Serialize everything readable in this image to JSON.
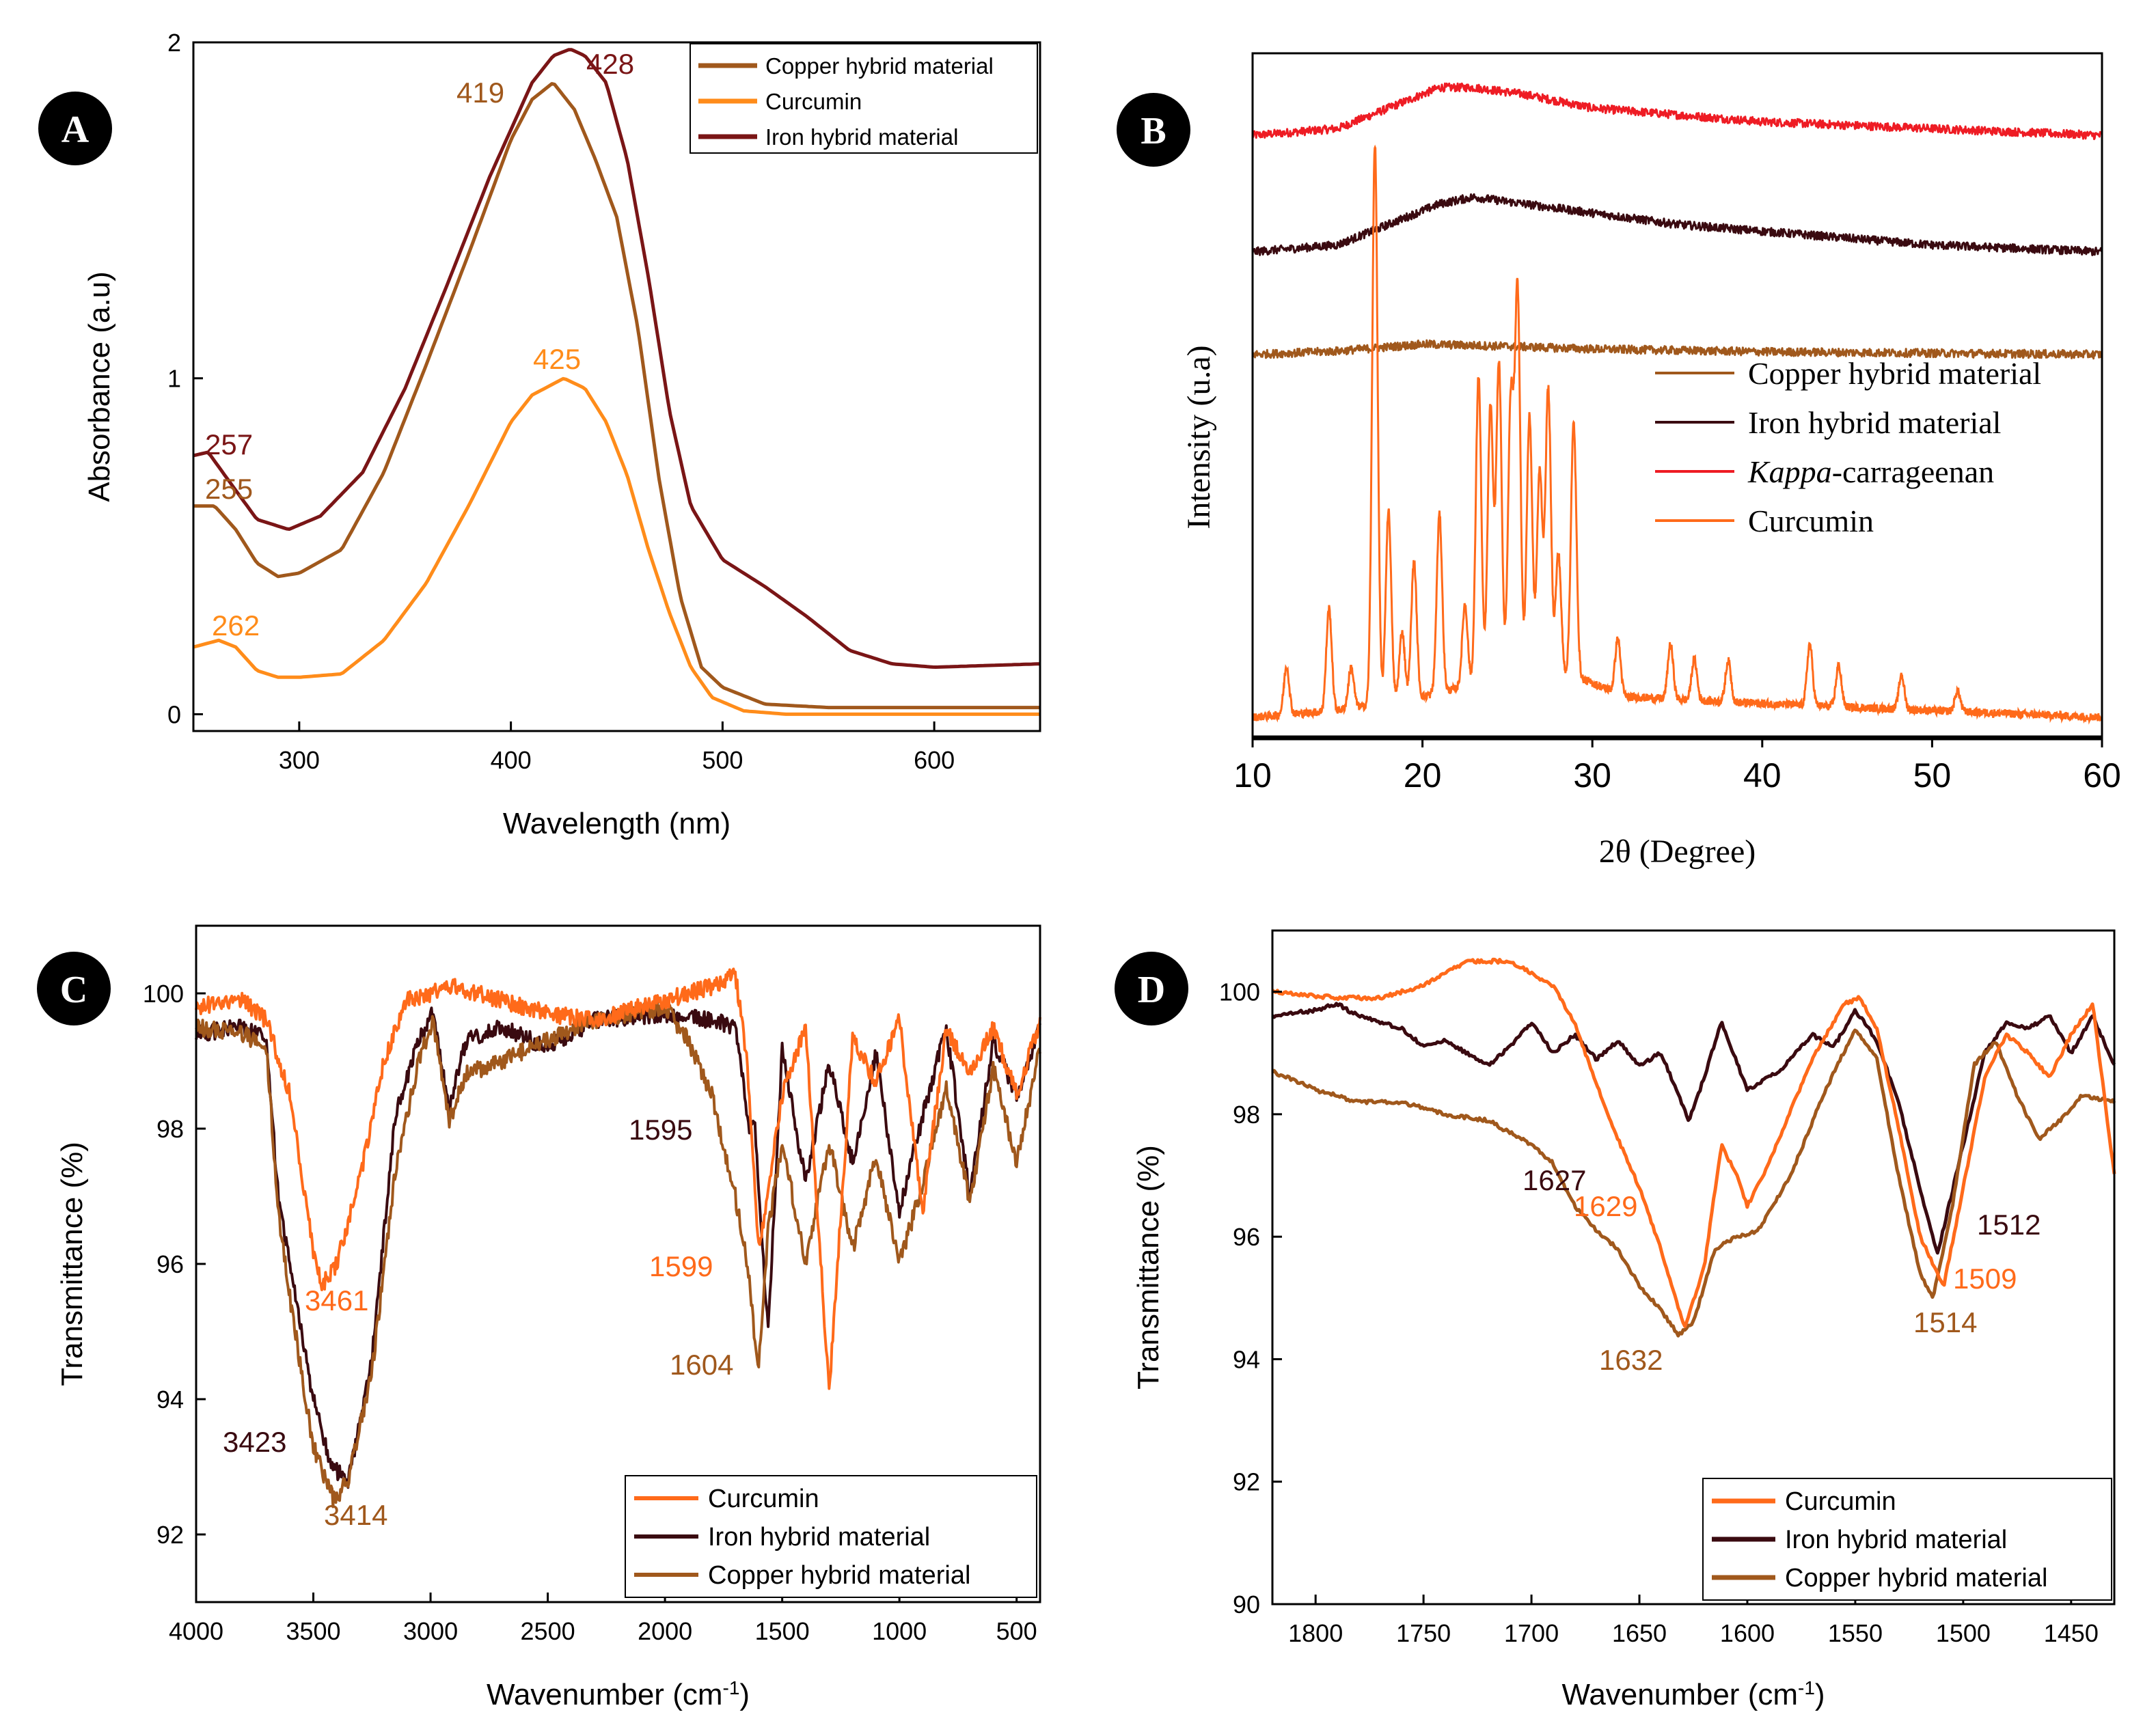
{
  "chart_data": [
    {
      "panel": "A",
      "type": "line",
      "xlabel": "Wavelength (nm)",
      "ylabel": "Absorbance (a.u)",
      "xlim": [
        250,
        650
      ],
      "ylim": [
        -0.05,
        2.0
      ],
      "xticks": [
        "300",
        "400",
        "500",
        "600"
      ],
      "yticks": [
        "0",
        "1",
        "2"
      ],
      "legend": [
        "Copper hybrid material",
        "Curcumin",
        "Iron hybrid material"
      ],
      "series": [
        {
          "name": "Copper hybrid material",
          "color": "#a0581c",
          "x": [
            250,
            260,
            270,
            280,
            290,
            300,
            320,
            340,
            360,
            380,
            400,
            410,
            420,
            430,
            440,
            450,
            460,
            470,
            480,
            490,
            500,
            520,
            550,
            600,
            650
          ],
          "y": [
            0.62,
            0.62,
            0.55,
            0.45,
            0.41,
            0.42,
            0.49,
            0.72,
            1.04,
            1.37,
            1.71,
            1.83,
            1.88,
            1.8,
            1.65,
            1.48,
            1.15,
            0.7,
            0.35,
            0.14,
            0.08,
            0.03,
            0.02,
            0.02,
            0.02
          ]
        },
        {
          "name": "Curcumin",
          "color": "#ff8c1a",
          "x": [
            250,
            262,
            270,
            280,
            290,
            300,
            320,
            340,
            360,
            380,
            400,
            410,
            425,
            435,
            445,
            455,
            465,
            475,
            485,
            495,
            510,
            530,
            560,
            600,
            650
          ],
          "y": [
            0.2,
            0.22,
            0.2,
            0.13,
            0.11,
            0.11,
            0.12,
            0.22,
            0.39,
            0.62,
            0.87,
            0.95,
            1.0,
            0.97,
            0.87,
            0.71,
            0.49,
            0.3,
            0.14,
            0.05,
            0.01,
            0.0,
            0.0,
            0.0,
            0.0
          ]
        },
        {
          "name": "Iron hybrid material",
          "color": "#7a1516",
          "x": [
            250,
            257,
            265,
            280,
            295,
            310,
            330,
            350,
            370,
            390,
            410,
            420,
            428,
            435,
            445,
            455,
            465,
            475,
            485,
            500,
            520,
            540,
            560,
            580,
            600,
            650
          ],
          "y": [
            0.77,
            0.78,
            0.71,
            0.58,
            0.55,
            0.59,
            0.72,
            0.97,
            1.28,
            1.6,
            1.88,
            1.96,
            1.98,
            1.96,
            1.88,
            1.65,
            1.3,
            0.9,
            0.62,
            0.46,
            0.38,
            0.29,
            0.19,
            0.15,
            0.14,
            0.15
          ]
        }
      ],
      "annotations": [
        {
          "text": "257",
          "color": "#7a1516"
        },
        {
          "text": "255",
          "color": "#a0581c"
        },
        {
          "text": "262",
          "color": "#ff8c1a"
        },
        {
          "text": "419",
          "color": "#a0581c"
        },
        {
          "text": "428",
          "color": "#7a1516"
        },
        {
          "text": "425",
          "color": "#ff8c1a"
        }
      ]
    },
    {
      "panel": "B",
      "type": "line",
      "xlabel": "2θ (Degree)",
      "ylabel": "Intensity (u.a)",
      "xlim": [
        10,
        60
      ],
      "ylim": [
        0,
        1
      ],
      "xticks": [
        "10",
        "20",
        "30",
        "40",
        "50",
        "60"
      ],
      "legend": [
        "Copper hybrid material",
        "Iron hybrid material",
        "Kappa-carrageenan",
        "Curcumin"
      ],
      "series": [
        {
          "name": "Kappa-carrageenan",
          "color": "#ee1c24",
          "offset": 0.88,
          "x": [
            10,
            15,
            18,
            21,
            23,
            26,
            30,
            40,
            50,
            60
          ],
          "y": [
            0,
            0.01,
            0.04,
            0.07,
            0.07,
            0.06,
            0.04,
            0.02,
            0.01,
            0
          ]
        },
        {
          "name": "Iron hybrid material",
          "color": "#3a0a10",
          "offset": 0.71,
          "x": [
            10,
            15,
            18,
            21,
            23,
            26,
            29,
            35,
            40,
            50,
            60
          ],
          "y": [
            0,
            0.01,
            0.04,
            0.07,
            0.08,
            0.07,
            0.06,
            0.04,
            0.03,
            0.01,
            0
          ]
        },
        {
          "name": "Copper hybrid material",
          "color": "#a0581c",
          "offset": 0.56,
          "x": [
            10,
            15,
            20,
            25,
            30,
            40,
            50,
            60
          ],
          "y": [
            0,
            0.005,
            0.015,
            0.012,
            0.008,
            0.004,
            0.002,
            0
          ]
        },
        {
          "name": "Curcumin",
          "color": "#ff6a1a",
          "offset": 0.03,
          "baseline": [
            [
              10,
              0.0
            ],
            [
              15,
              0.01
            ],
            [
              20,
              0.03
            ],
            [
              25,
              0.06
            ],
            [
              29,
              0.06
            ],
            [
              32,
              0.03
            ],
            [
              40,
              0.02
            ],
            [
              50,
              0.01
            ],
            [
              60,
              0.0
            ]
          ],
          "peaks": [
            [
              12.0,
              0.07
            ],
            [
              14.5,
              0.15
            ],
            [
              15.8,
              0.06
            ],
            [
              17.2,
              0.82
            ],
            [
              18.0,
              0.28
            ],
            [
              18.8,
              0.1
            ],
            [
              19.5,
              0.2
            ],
            [
              21.0,
              0.26
            ],
            [
              22.5,
              0.12
            ],
            [
              23.3,
              0.45
            ],
            [
              24.0,
              0.4
            ],
            [
              24.5,
              0.46
            ],
            [
              25.2,
              0.4
            ],
            [
              25.6,
              0.56
            ],
            [
              26.3,
              0.38
            ],
            [
              26.9,
              0.3
            ],
            [
              27.4,
              0.42
            ],
            [
              28.0,
              0.18
            ],
            [
              28.9,
              0.37
            ],
            [
              31.5,
              0.08
            ],
            [
              34.6,
              0.08
            ],
            [
              36.0,
              0.06
            ],
            [
              38.0,
              0.06
            ],
            [
              42.8,
              0.09
            ],
            [
              44.5,
              0.06
            ],
            [
              48.2,
              0.05
            ],
            [
              51.5,
              0.03
            ]
          ]
        }
      ]
    },
    {
      "panel": "C",
      "type": "line",
      "xlabel": "Wavenumber (cm⁻¹)",
      "ylabel": "Transmittance (%)",
      "xlim": [
        4000,
        400
      ],
      "ylim": [
        91.0,
        101.0
      ],
      "xticks": [
        "4000",
        "3500",
        "3000",
        "2500",
        "2000",
        "1500",
        "1000",
        "500"
      ],
      "yticks": [
        "92",
        "94",
        "96",
        "98",
        "100"
      ],
      "legend": [
        "Curcumin",
        "Iron hybrid material",
        "Copper hybrid material"
      ],
      "series": [
        {
          "name": "Curcumin",
          "color": "#ff6a1a",
          "x": [
            4000,
            3800,
            3700,
            3600,
            3500,
            3461,
            3400,
            3300,
            3200,
            3100,
            3000,
            2900,
            2800,
            2500,
            2300,
            2000,
            1800,
            1700,
            1650,
            1600,
            1500,
            1400,
            1300,
            1200,
            1100,
            1000,
            900,
            800,
            700,
            600,
            500,
            400
          ],
          "y": [
            99.8,
            99.9,
            99.6,
            98.5,
            96.2,
            95.7,
            96.0,
            97.3,
            99.0,
            99.9,
            100.0,
            100.1,
            100.0,
            99.7,
            99.6,
            99.9,
            100.1,
            100.3,
            99.0,
            96.2,
            98.5,
            99.5,
            94.1,
            99.3,
            98.7,
            99.6,
            96.8,
            99.5,
            98.8,
            99.5,
            98.5,
            99.6
          ]
        },
        {
          "name": "Iron hybrid material",
          "color": "#3a0a10",
          "x": [
            4000,
            3800,
            3700,
            3650,
            3600,
            3500,
            3423,
            3350,
            3250,
            3150,
            3050,
            2990,
            2920,
            2850,
            2700,
            2500,
            2300,
            2000,
            1800,
            1700,
            1640,
            1620,
            1560,
            1500,
            1400,
            1300,
            1200,
            1100,
            1000,
            900,
            800,
            700,
            600,
            500,
            400
          ],
          "y": [
            99.4,
            99.5,
            99.3,
            97.0,
            96.0,
            94.0,
            93.0,
            92.8,
            94.6,
            98.2,
            99.3,
            99.7,
            98.3,
            99.3,
            99.5,
            99.2,
            99.6,
            99.7,
            99.6,
            99.5,
            98.0,
            98.2,
            95.0,
            99.2,
            97.2,
            99.0,
            97.5,
            99.1,
            96.8,
            98.2,
            99.5,
            97.0,
            99.3,
            98.5,
            99.5
          ]
        },
        {
          "name": "Copper hybrid material",
          "color": "#a0581c",
          "x": [
            4000,
            3800,
            3700,
            3650,
            3600,
            3500,
            3414,
            3350,
            3250,
            3150,
            3050,
            2990,
            2920,
            2850,
            2700,
            2500,
            2300,
            2000,
            1900,
            1800,
            1700,
            1640,
            1604,
            1560,
            1500,
            1400,
            1300,
            1200,
            1100,
            1000,
            900,
            800,
            700,
            600,
            500,
            400
          ],
          "y": [
            99.5,
            99.4,
            99.2,
            96.8,
            95.5,
            93.3,
            92.5,
            92.8,
            94.4,
            97.4,
            99.0,
            99.6,
            98.1,
            98.8,
            99.0,
            99.3,
            99.6,
            99.8,
            99.3,
            98.5,
            97.0,
            95.8,
            94.4,
            96.5,
            97.8,
            96.0,
            97.8,
            96.2,
            97.6,
            96.0,
            97.2,
            98.6,
            96.9,
            98.9,
            97.5,
            99.2
          ]
        }
      ],
      "annotations": [
        {
          "text": "3461",
          "color": "#ff6a1a"
        },
        {
          "text": "3423",
          "color": "#3a0a10"
        },
        {
          "text": "3414",
          "color": "#a0581c"
        },
        {
          "text": "1595",
          "color": "#3a0a10"
        },
        {
          "text": "1599",
          "color": "#ff6a1a"
        },
        {
          "text": "1604",
          "color": "#a0581c"
        }
      ]
    },
    {
      "panel": "D",
      "type": "line",
      "xlabel": "Wavenumber (cm⁻¹)",
      "ylabel": "Transmittance (%)",
      "xlim": [
        1820,
        1430
      ],
      "ylim": [
        90.0,
        101.0
      ],
      "xticks": [
        "1800",
        "1750",
        "1700",
        "1650",
        "1600",
        "1550",
        "1500",
        "1450"
      ],
      "yticks": [
        "90",
        "92",
        "94",
        "96",
        "98",
        "100"
      ],
      "legend": [
        "Curcumin",
        "Iron hybrid material",
        "Copper hybrid material"
      ],
      "series": [
        {
          "name": "Curcumin",
          "color": "#ff6a1a",
          "x": [
            1820,
            1790,
            1770,
            1750,
            1730,
            1710,
            1690,
            1680,
            1670,
            1660,
            1650,
            1640,
            1629,
            1620,
            1612,
            1605,
            1600,
            1590,
            1570,
            1555,
            1548,
            1540,
            1530,
            1520,
            1509,
            1500,
            1490,
            1480,
            1470,
            1460,
            1450,
            1440,
            1430
          ],
          "y": [
            100.0,
            99.9,
            99.9,
            100.1,
            100.5,
            100.5,
            100.1,
            99.5,
            98.5,
            97.6,
            96.8,
            95.8,
            94.5,
            95.5,
            97.5,
            97.0,
            96.5,
            97.2,
            98.9,
            99.8,
            99.9,
            99.4,
            97.8,
            96.0,
            95.2,
            96.8,
            98.6,
            99.3,
            99.0,
            98.6,
            99.3,
            99.8,
            97.0
          ]
        },
        {
          "name": "Iron hybrid material",
          "color": "#3a0a10",
          "x": [
            1820,
            1800,
            1790,
            1780,
            1770,
            1760,
            1750,
            1740,
            1730,
            1720,
            1710,
            1700,
            1690,
            1680,
            1670,
            1660,
            1650,
            1640,
            1627,
            1620,
            1612,
            1600,
            1585,
            1570,
            1560,
            1550,
            1540,
            1530,
            1520,
            1512,
            1500,
            1490,
            1480,
            1470,
            1460,
            1450,
            1440,
            1430
          ],
          "y": [
            99.6,
            99.7,
            99.8,
            99.6,
            99.5,
            99.4,
            99.1,
            99.2,
            99.0,
            98.8,
            99.1,
            99.5,
            99.0,
            99.3,
            98.9,
            99.2,
            98.8,
            99.0,
            97.9,
            98.6,
            99.5,
            98.4,
            98.7,
            99.3,
            99.1,
            99.7,
            99.2,
            98.2,
            96.8,
            95.7,
            97.5,
            99.0,
            99.5,
            99.4,
            99.6,
            99.0,
            99.6,
            98.8
          ]
        },
        {
          "name": "Copper hybrid material",
          "color": "#a0581c",
          "x": [
            1820,
            1800,
            1780,
            1760,
            1740,
            1720,
            1700,
            1690,
            1680,
            1670,
            1660,
            1650,
            1640,
            1632,
            1625,
            1615,
            1605,
            1595,
            1580,
            1565,
            1550,
            1540,
            1530,
            1520,
            1514,
            1505,
            1495,
            1485,
            1475,
            1465,
            1455,
            1445,
            1430
          ],
          "y": [
            98.7,
            98.4,
            98.2,
            98.2,
            98.0,
            97.9,
            97.5,
            97.2,
            96.5,
            96.1,
            95.8,
            95.2,
            94.8,
            94.4,
            94.6,
            95.8,
            96.0,
            96.1,
            97.0,
            98.3,
            99.4,
            98.9,
            97.0,
            95.4,
            95.0,
            96.5,
            98.8,
            99.2,
            98.3,
            97.6,
            97.9,
            98.3,
            98.2
          ]
        }
      ],
      "annotations": [
        {
          "text": "1627",
          "color": "#3a0a10"
        },
        {
          "text": "1629",
          "color": "#ff6a1a"
        },
        {
          "text": "1632",
          "color": "#a0581c"
        },
        {
          "text": "1512",
          "color": "#3a0a10"
        },
        {
          "text": "1509",
          "color": "#ff6a1a"
        },
        {
          "text": "1514",
          "color": "#a0581c"
        }
      ]
    }
  ]
}
